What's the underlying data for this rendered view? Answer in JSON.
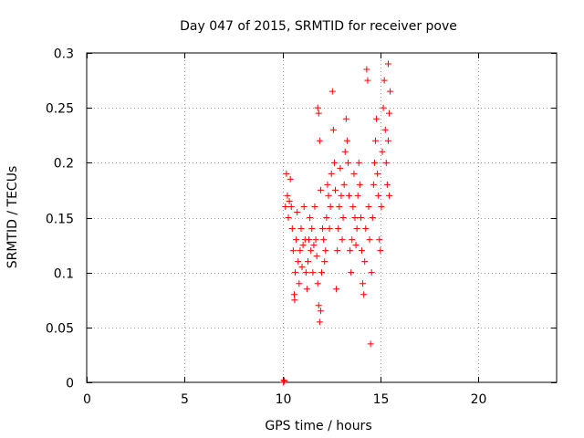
{
  "chart_data": {
    "type": "scatter",
    "title": "Day 047 of 2015, SRMTID for receiver pove",
    "xlabel": "GPS time / hours",
    "ylabel": "SRMTID / TECUs",
    "xlim": [
      0,
      24
    ],
    "ylim": [
      0,
      0.3
    ],
    "xticks": [
      0,
      5,
      10,
      15,
      20
    ],
    "yticks": [
      0,
      0.05,
      0.1,
      0.15,
      0.2,
      0.25,
      0.3
    ],
    "xtick_labels": [
      "0",
      "5",
      "10",
      "15",
      "20"
    ],
    "ytick_labels": [
      "0",
      "0.05",
      "0.1",
      "0.15",
      "0.2",
      "0.25",
      "0.3"
    ],
    "grid": true,
    "marker": "plus",
    "color": "#ff0000",
    "series": [
      {
        "name": "SRMTID",
        "points": [
          [
            10.05,
            0.0
          ],
          [
            10.07,
            0.002
          ],
          [
            10.1,
            0.001
          ],
          [
            10.15,
            0.16
          ],
          [
            10.2,
            0.19
          ],
          [
            10.25,
            0.17
          ],
          [
            10.3,
            0.15
          ],
          [
            10.35,
            0.165
          ],
          [
            10.4,
            0.185
          ],
          [
            10.45,
            0.16
          ],
          [
            10.5,
            0.14
          ],
          [
            10.55,
            0.12
          ],
          [
            10.6,
            0.08
          ],
          [
            10.62,
            0.075
          ],
          [
            10.65,
            0.1
          ],
          [
            10.7,
            0.13
          ],
          [
            10.75,
            0.155
          ],
          [
            10.8,
            0.11
          ],
          [
            10.85,
            0.09
          ],
          [
            10.9,
            0.12
          ],
          [
            10.95,
            0.14
          ],
          [
            11.0,
            0.105
          ],
          [
            11.05,
            0.125
          ],
          [
            11.1,
            0.16
          ],
          [
            11.15,
            0.13
          ],
          [
            11.2,
            0.1
          ],
          [
            11.25,
            0.085
          ],
          [
            11.3,
            0.11
          ],
          [
            11.35,
            0.13
          ],
          [
            11.4,
            0.15
          ],
          [
            11.45,
            0.12
          ],
          [
            11.5,
            0.14
          ],
          [
            11.55,
            0.1
          ],
          [
            11.6,
            0.125
          ],
          [
            11.65,
            0.16
          ],
          [
            11.7,
            0.13
          ],
          [
            11.75,
            0.115
          ],
          [
            11.8,
            0.09
          ],
          [
            11.85,
            0.07
          ],
          [
            11.9,
            0.055
          ],
          [
            11.95,
            0.065
          ],
          [
            12.0,
            0.1
          ],
          [
            12.05,
            0.14
          ],
          [
            11.8,
            0.25
          ],
          [
            11.85,
            0.245
          ],
          [
            11.9,
            0.22
          ],
          [
            11.95,
            0.175
          ],
          [
            12.1,
            0.13
          ],
          [
            12.15,
            0.11
          ],
          [
            12.2,
            0.12
          ],
          [
            12.25,
            0.15
          ],
          [
            12.3,
            0.18
          ],
          [
            12.35,
            0.17
          ],
          [
            12.4,
            0.14
          ],
          [
            12.45,
            0.16
          ],
          [
            12.5,
            0.19
          ],
          [
            12.55,
            0.265
          ],
          [
            12.6,
            0.23
          ],
          [
            12.65,
            0.2
          ],
          [
            12.7,
            0.175
          ],
          [
            12.75,
            0.085
          ],
          [
            12.8,
            0.12
          ],
          [
            12.85,
            0.14
          ],
          [
            12.9,
            0.16
          ],
          [
            12.95,
            0.195
          ],
          [
            13.0,
            0.17
          ],
          [
            13.05,
            0.13
          ],
          [
            13.1,
            0.15
          ],
          [
            13.15,
            0.18
          ],
          [
            13.2,
            0.21
          ],
          [
            13.25,
            0.24
          ],
          [
            13.3,
            0.22
          ],
          [
            13.35,
            0.2
          ],
          [
            13.4,
            0.17
          ],
          [
            13.45,
            0.12
          ],
          [
            13.5,
            0.1
          ],
          [
            13.55,
            0.13
          ],
          [
            13.6,
            0.16
          ],
          [
            13.65,
            0.19
          ],
          [
            13.7,
            0.15
          ],
          [
            13.75,
            0.125
          ],
          [
            13.8,
            0.14
          ],
          [
            13.85,
            0.17
          ],
          [
            13.9,
            0.2
          ],
          [
            13.95,
            0.18
          ],
          [
            14.0,
            0.15
          ],
          [
            14.05,
            0.12
          ],
          [
            14.1,
            0.09
          ],
          [
            14.15,
            0.08
          ],
          [
            14.2,
            0.11
          ],
          [
            14.25,
            0.14
          ],
          [
            14.3,
            0.285
          ],
          [
            14.35,
            0.275
          ],
          [
            14.4,
            0.16
          ],
          [
            14.45,
            0.13
          ],
          [
            14.5,
            0.035
          ],
          [
            14.55,
            0.1
          ],
          [
            14.6,
            0.15
          ],
          [
            14.65,
            0.18
          ],
          [
            14.7,
            0.2
          ],
          [
            14.75,
            0.22
          ],
          [
            14.8,
            0.24
          ],
          [
            14.85,
            0.19
          ],
          [
            14.9,
            0.17
          ],
          [
            14.95,
            0.13
          ],
          [
            15.0,
            0.12
          ],
          [
            15.05,
            0.16
          ],
          [
            15.1,
            0.21
          ],
          [
            15.15,
            0.25
          ],
          [
            15.2,
            0.275
          ],
          [
            15.25,
            0.23
          ],
          [
            15.3,
            0.2
          ],
          [
            15.35,
            0.18
          ],
          [
            15.4,
            0.22
          ],
          [
            15.45,
            0.245
          ],
          [
            15.5,
            0.265
          ],
          [
            15.4,
            0.29
          ],
          [
            15.45,
            0.17
          ]
        ]
      }
    ]
  }
}
